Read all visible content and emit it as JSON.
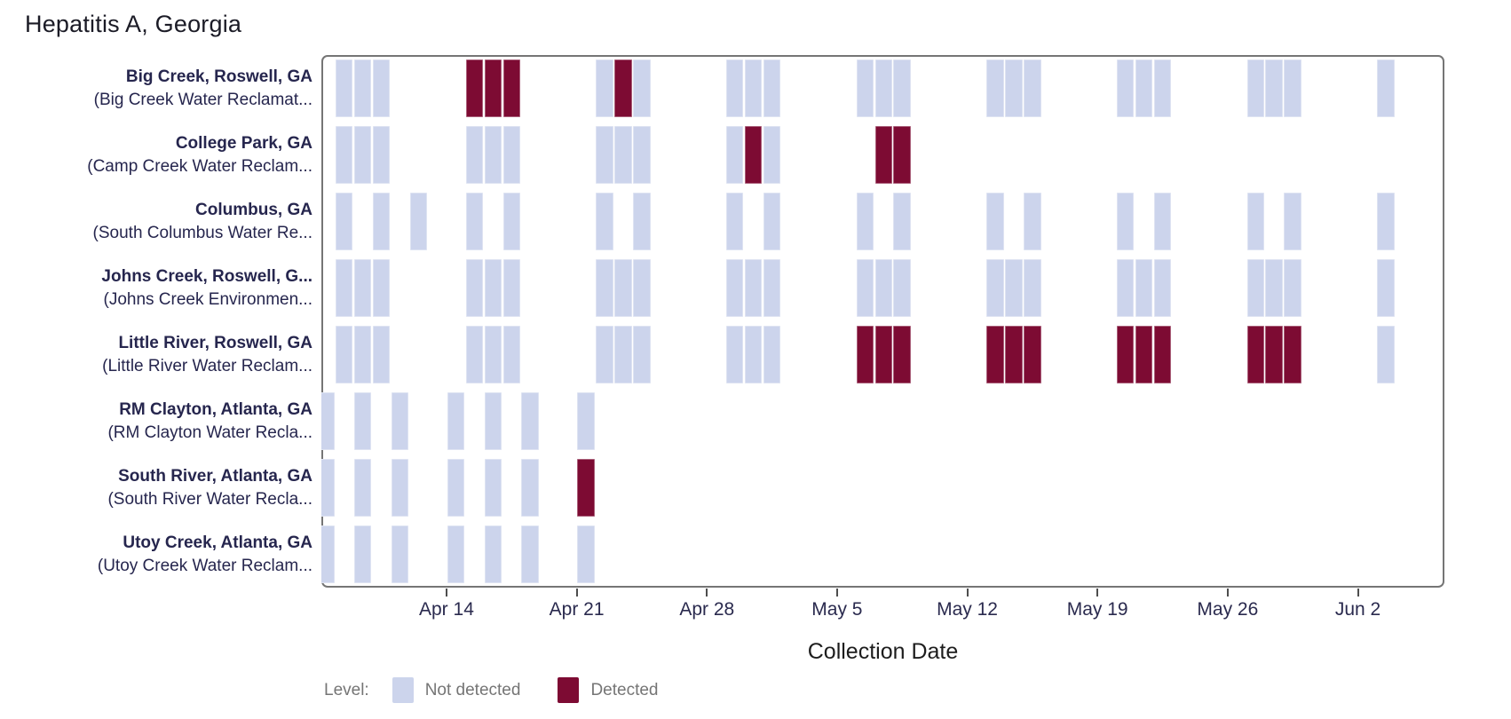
{
  "title": "Hepatitis A, Georgia",
  "axis": {
    "x_title": "Collection Date",
    "ticks": [
      {
        "day": 7,
        "label": "Apr 14"
      },
      {
        "day": 14,
        "label": "Apr 21"
      },
      {
        "day": 21,
        "label": "Apr 28"
      },
      {
        "day": 28,
        "label": "May 5"
      },
      {
        "day": 35,
        "label": "May 12"
      },
      {
        "day": 42,
        "label": "May 19"
      },
      {
        "day": 49,
        "label": "May 26"
      },
      {
        "day": 56,
        "label": "Jun 2"
      }
    ]
  },
  "legend": {
    "title": "Level:",
    "items": [
      {
        "label": "Not detected",
        "color": "#ccd4ec"
      },
      {
        "label": "Detected",
        "color": "#7d0b33"
      }
    ]
  },
  "colors": {
    "not_detected": "#ccd4ec",
    "detected": "#7d0b33",
    "label_text": "#26264e",
    "legend_text": "#757575",
    "panel_border": "#757575"
  },
  "chart_data": {
    "type": "heatmap",
    "title": "Hepatitis A, Georgia",
    "xlabel": "Collection Date",
    "x_range_days": [
      "Apr 7",
      "Jun 7"
    ],
    "legend_position": "bottom-left",
    "sample_format": [
      "day_offset_from_Apr_7",
      "date",
      "detected_0_or_1"
    ],
    "rows": [
      {
        "site": "Big Creek, Roswell, GA",
        "facility": "(Big Creek Water Reclamat...",
        "samples": [
          [
            1,
            "Apr 8",
            0
          ],
          [
            2,
            "Apr 9",
            0
          ],
          [
            3,
            "Apr 10",
            0
          ],
          [
            8,
            "Apr 15",
            1
          ],
          [
            9,
            "Apr 16",
            1
          ],
          [
            10,
            "Apr 17",
            1
          ],
          [
            15,
            "Apr 22",
            0
          ],
          [
            16,
            "Apr 23",
            1
          ],
          [
            17,
            "Apr 24",
            0
          ],
          [
            22,
            "Apr 29",
            0
          ],
          [
            23,
            "Apr 30",
            0
          ],
          [
            24,
            "May 1",
            0
          ],
          [
            29,
            "May 6",
            0
          ],
          [
            30,
            "May 7",
            0
          ],
          [
            31,
            "May 8",
            0
          ],
          [
            36,
            "May 13",
            0
          ],
          [
            37,
            "May 14",
            0
          ],
          [
            38,
            "May 15",
            0
          ],
          [
            43,
            "May 20",
            0
          ],
          [
            44,
            "May 21",
            0
          ],
          [
            45,
            "May 22",
            0
          ],
          [
            50,
            "May 27",
            0
          ],
          [
            51,
            "May 28",
            0
          ],
          [
            52,
            "May 29",
            0
          ],
          [
            57,
            "Jun 3",
            0
          ]
        ]
      },
      {
        "site": "College Park, GA",
        "facility": "(Camp Creek Water Reclam...",
        "samples": [
          [
            1,
            "Apr 8",
            0
          ],
          [
            2,
            "Apr 9",
            0
          ],
          [
            3,
            "Apr 10",
            0
          ],
          [
            8,
            "Apr 15",
            0
          ],
          [
            9,
            "Apr 16",
            0
          ],
          [
            10,
            "Apr 17",
            0
          ],
          [
            15,
            "Apr 22",
            0
          ],
          [
            16,
            "Apr 23",
            0
          ],
          [
            17,
            "Apr 24",
            0
          ],
          [
            22,
            "Apr 29",
            0
          ],
          [
            23,
            "Apr 30",
            1
          ],
          [
            24,
            "May 1",
            0
          ],
          [
            30,
            "May 7",
            1
          ],
          [
            31,
            "May 8",
            1
          ]
        ]
      },
      {
        "site": "Columbus, GA",
        "facility": "(South Columbus Water Re...",
        "samples": [
          [
            1,
            "Apr 8",
            0
          ],
          [
            3,
            "Apr 10",
            0
          ],
          [
            5,
            "Apr 12",
            0
          ],
          [
            8,
            "Apr 15",
            0
          ],
          [
            10,
            "Apr 17",
            0
          ],
          [
            15,
            "Apr 22",
            0
          ],
          [
            17,
            "Apr 24",
            0
          ],
          [
            22,
            "Apr 29",
            0
          ],
          [
            24,
            "May 1",
            0
          ],
          [
            29,
            "May 6",
            0
          ],
          [
            31,
            "May 8",
            0
          ],
          [
            36,
            "May 13",
            0
          ],
          [
            38,
            "May 15",
            0
          ],
          [
            43,
            "May 20",
            0
          ],
          [
            45,
            "May 22",
            0
          ],
          [
            50,
            "May 27",
            0
          ],
          [
            52,
            "May 29",
            0
          ],
          [
            57,
            "Jun 3",
            0
          ]
        ]
      },
      {
        "site": "Johns Creek, Roswell, G...",
        "facility": "(Johns Creek Environmen...",
        "samples": [
          [
            1,
            "Apr 8",
            0
          ],
          [
            2,
            "Apr 9",
            0
          ],
          [
            3,
            "Apr 10",
            0
          ],
          [
            8,
            "Apr 15",
            0
          ],
          [
            9,
            "Apr 16",
            0
          ],
          [
            10,
            "Apr 17",
            0
          ],
          [
            15,
            "Apr 22",
            0
          ],
          [
            16,
            "Apr 23",
            0
          ],
          [
            17,
            "Apr 24",
            0
          ],
          [
            22,
            "Apr 29",
            0
          ],
          [
            23,
            "Apr 30",
            0
          ],
          [
            24,
            "May 1",
            0
          ],
          [
            29,
            "May 6",
            0
          ],
          [
            30,
            "May 7",
            0
          ],
          [
            31,
            "May 8",
            0
          ],
          [
            36,
            "May 13",
            0
          ],
          [
            37,
            "May 14",
            0
          ],
          [
            38,
            "May 15",
            0
          ],
          [
            43,
            "May 20",
            0
          ],
          [
            44,
            "May 21",
            0
          ],
          [
            45,
            "May 22",
            0
          ],
          [
            50,
            "May 27",
            0
          ],
          [
            51,
            "May 28",
            0
          ],
          [
            52,
            "May 29",
            0
          ],
          [
            57,
            "Jun 3",
            0
          ]
        ]
      },
      {
        "site": "Little River, Roswell, GA",
        "facility": "(Little River Water Reclam...",
        "samples": [
          [
            1,
            "Apr 8",
            0
          ],
          [
            2,
            "Apr 9",
            0
          ],
          [
            3,
            "Apr 10",
            0
          ],
          [
            8,
            "Apr 15",
            0
          ],
          [
            9,
            "Apr 16",
            0
          ],
          [
            10,
            "Apr 17",
            0
          ],
          [
            15,
            "Apr 22",
            0
          ],
          [
            16,
            "Apr 23",
            0
          ],
          [
            17,
            "Apr 24",
            0
          ],
          [
            22,
            "Apr 29",
            0
          ],
          [
            23,
            "Apr 30",
            0
          ],
          [
            24,
            "May 1",
            0
          ],
          [
            29,
            "May 6",
            1
          ],
          [
            30,
            "May 7",
            1
          ],
          [
            31,
            "May 8",
            1
          ],
          [
            36,
            "May 13",
            1
          ],
          [
            37,
            "May 14",
            1
          ],
          [
            38,
            "May 15",
            1
          ],
          [
            43,
            "May 20",
            1
          ],
          [
            44,
            "May 21",
            1
          ],
          [
            45,
            "May 22",
            1
          ],
          [
            50,
            "May 27",
            1
          ],
          [
            51,
            "May 28",
            1
          ],
          [
            52,
            "May 29",
            1
          ],
          [
            57,
            "Jun 3",
            0
          ]
        ]
      },
      {
        "site": "RM Clayton, Atlanta, GA",
        "facility": "(RM Clayton Water Recla...",
        "samples": [
          [
            0,
            "Apr 7",
            0
          ],
          [
            2,
            "Apr 9",
            0
          ],
          [
            4,
            "Apr 11",
            0
          ],
          [
            7,
            "Apr 14",
            0
          ],
          [
            9,
            "Apr 16",
            0
          ],
          [
            11,
            "Apr 18",
            0
          ],
          [
            14,
            "Apr 21",
            0
          ]
        ]
      },
      {
        "site": "South River, Atlanta, GA",
        "facility": "(South River Water Recla...",
        "samples": [
          [
            0,
            "Apr 7",
            0
          ],
          [
            2,
            "Apr 9",
            0
          ],
          [
            4,
            "Apr 11",
            0
          ],
          [
            7,
            "Apr 14",
            0
          ],
          [
            9,
            "Apr 16",
            0
          ],
          [
            11,
            "Apr 18",
            0
          ],
          [
            14,
            "Apr 21",
            1
          ]
        ]
      },
      {
        "site": "Utoy Creek, Atlanta, GA",
        "facility": "(Utoy Creek Water Reclam...",
        "samples": [
          [
            0,
            "Apr 7",
            0
          ],
          [
            2,
            "Apr 9",
            0
          ],
          [
            4,
            "Apr 11",
            0
          ],
          [
            7,
            "Apr 14",
            0
          ],
          [
            9,
            "Apr 16",
            0
          ],
          [
            11,
            "Apr 18",
            0
          ],
          [
            14,
            "Apr 21",
            0
          ]
        ]
      }
    ]
  }
}
